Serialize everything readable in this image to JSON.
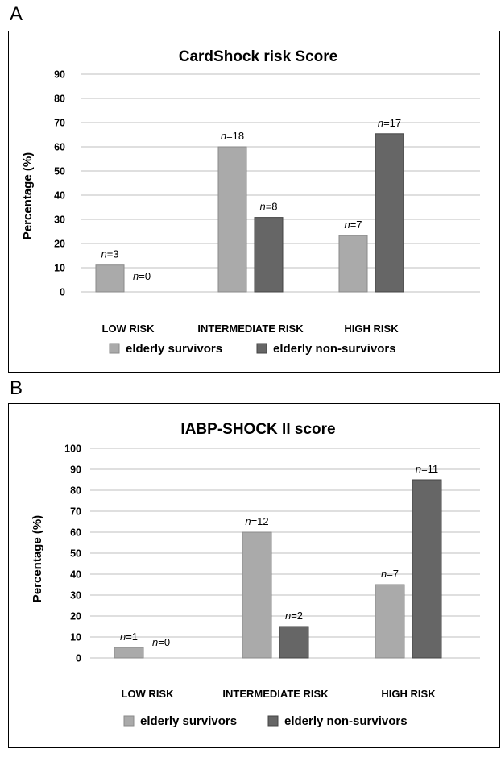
{
  "panels": [
    {
      "letter": "A"
    },
    {
      "letter": "B"
    }
  ],
  "colors": {
    "survivors": "#aaaaaa",
    "non_survivors": "#666666",
    "grid": "#bfbfbf"
  },
  "chart_data": [
    {
      "type": "bar",
      "title": "CardShock risk Score",
      "ylabel": "Percentage (%)",
      "xlabel": "",
      "ylim": [
        0,
        90
      ],
      "yticks": [
        0,
        10,
        20,
        30,
        40,
        50,
        60,
        70,
        80,
        90
      ],
      "categories": [
        "LOW RISK",
        "INTERMEDIATE RISK",
        "HIGH RISK"
      ],
      "series": [
        {
          "name": "elderly survivors",
          "values": [
            11.1,
            60,
            23.3
          ],
          "labels": [
            "3",
            "18",
            "7"
          ]
        },
        {
          "name": "elderly non-survivors",
          "values": [
            0,
            30.8,
            65.4
          ],
          "labels": [
            "0",
            "8",
            "17"
          ]
        }
      ],
      "label_prefix": "n",
      "grid": true,
      "legend": "bottom"
    },
    {
      "type": "bar",
      "title": "IABP-SHOCK II score",
      "ylabel": "Percentage (%)",
      "xlabel": "",
      "ylim": [
        0,
        100
      ],
      "yticks": [
        0,
        10,
        20,
        30,
        40,
        50,
        60,
        70,
        80,
        90,
        100
      ],
      "categories": [
        "LOW RISK",
        "INTERMEDIATE RISK",
        "HIGH RISK"
      ],
      "series": [
        {
          "name": "elderly survivors",
          "values": [
            5,
            60,
            35
          ],
          "labels": [
            "1",
            "12",
            "7"
          ]
        },
        {
          "name": "elderly non-survivors",
          "values": [
            0,
            15,
            85
          ],
          "labels": [
            "0",
            "2",
            "11"
          ]
        }
      ],
      "label_prefix": "n",
      "grid": true,
      "legend": "bottom"
    }
  ]
}
